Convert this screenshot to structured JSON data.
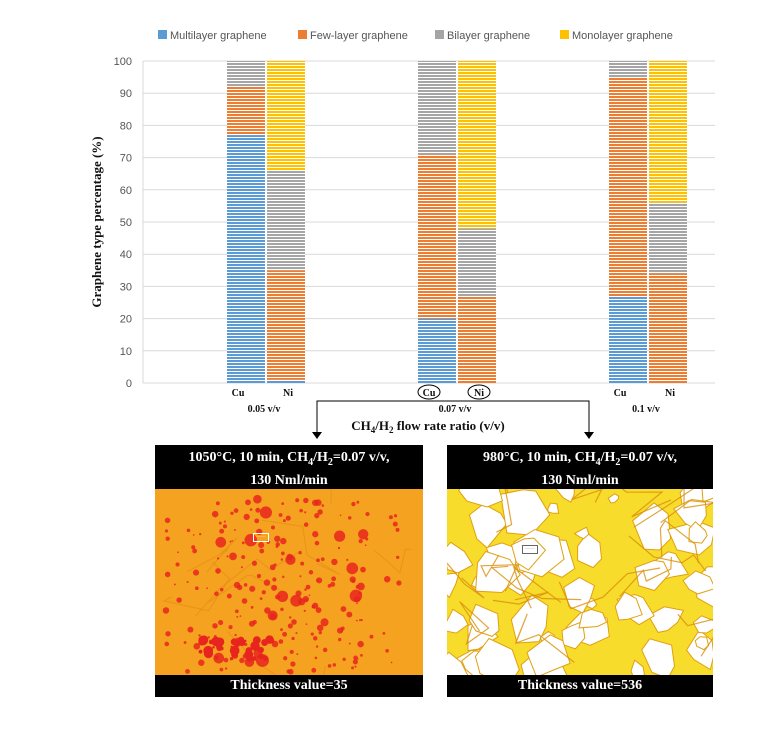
{
  "chart_data": {
    "type": "bar",
    "stacked": true,
    "ylabel": "Graphene type percentage (%)",
    "xlabel": "CH4/H2 flow rate ratio (v/v)",
    "ylim": [
      0,
      100
    ],
    "yticks": [
      0,
      10,
      20,
      30,
      40,
      50,
      60,
      70,
      80,
      90,
      100
    ],
    "grid": true,
    "legend_position": "top",
    "groups": [
      {
        "label": "0.05 v/v",
        "bars": [
          {
            "catalyst": "Cu",
            "circled": false,
            "values": {
              "multilayer": 77,
              "few": 15,
              "bilayer": 8,
              "monolayer": 0
            }
          },
          {
            "catalyst": "Ni",
            "circled": false,
            "values": {
              "multilayer": 1,
              "few": 34,
              "bilayer": 31,
              "monolayer": 34
            }
          }
        ]
      },
      {
        "label": "0.07 v/v",
        "bars": [
          {
            "catalyst": "Cu",
            "circled": true,
            "values": {
              "multilayer": 20,
              "few": 51,
              "bilayer": 29,
              "monolayer": 0
            }
          },
          {
            "catalyst": "Ni",
            "circled": true,
            "values": {
              "multilayer": 0,
              "few": 27,
              "bilayer": 21,
              "monolayer": 52
            }
          }
        ]
      },
      {
        "label": "0.1 v/v",
        "bars": [
          {
            "catalyst": "Cu",
            "circled": false,
            "values": {
              "multilayer": 27,
              "few": 68,
              "bilayer": 5,
              "monolayer": 0
            }
          },
          {
            "catalyst": "Ni",
            "circled": false,
            "values": {
              "multilayer": 0,
              "few": 34,
              "bilayer": 22,
              "monolayer": 44
            }
          }
        ]
      }
    ],
    "series": [
      {
        "key": "multilayer",
        "name": "Multilayer graphene",
        "color": "#5b9bd5"
      },
      {
        "key": "few",
        "name": "Few-layer graphene",
        "color": "#ed7d31"
      },
      {
        "key": "bilayer",
        "name": "Bilayer graphene",
        "color": "#a5a5a5"
      },
      {
        "key": "monolayer",
        "name": "Monolayer graphene",
        "color": "#ffc000"
      }
    ]
  },
  "panels": [
    {
      "caption_line1_pre": "1050°C, 10 min, CH",
      "caption_line1_mid": "/H",
      "caption_line1_post": "=0.07 v/v,",
      "sub1": "4",
      "sub2": "2",
      "caption_line2": "130 Nml/min",
      "thickness_label": "Thickness value=35",
      "base_color": "#f5a623",
      "spot_color": "#e8241f"
    },
    {
      "caption_line1_pre": "980°C, 10 min, CH",
      "caption_line1_mid": "/H",
      "caption_line1_post": "=0.07 v/v,",
      "sub1": "4",
      "sub2": "2",
      "caption_line2": "130 Nml/min",
      "thickness_label": "Thickness value=536",
      "base_color": "#f7dc2c",
      "spot_color": "#ffffff"
    }
  ]
}
